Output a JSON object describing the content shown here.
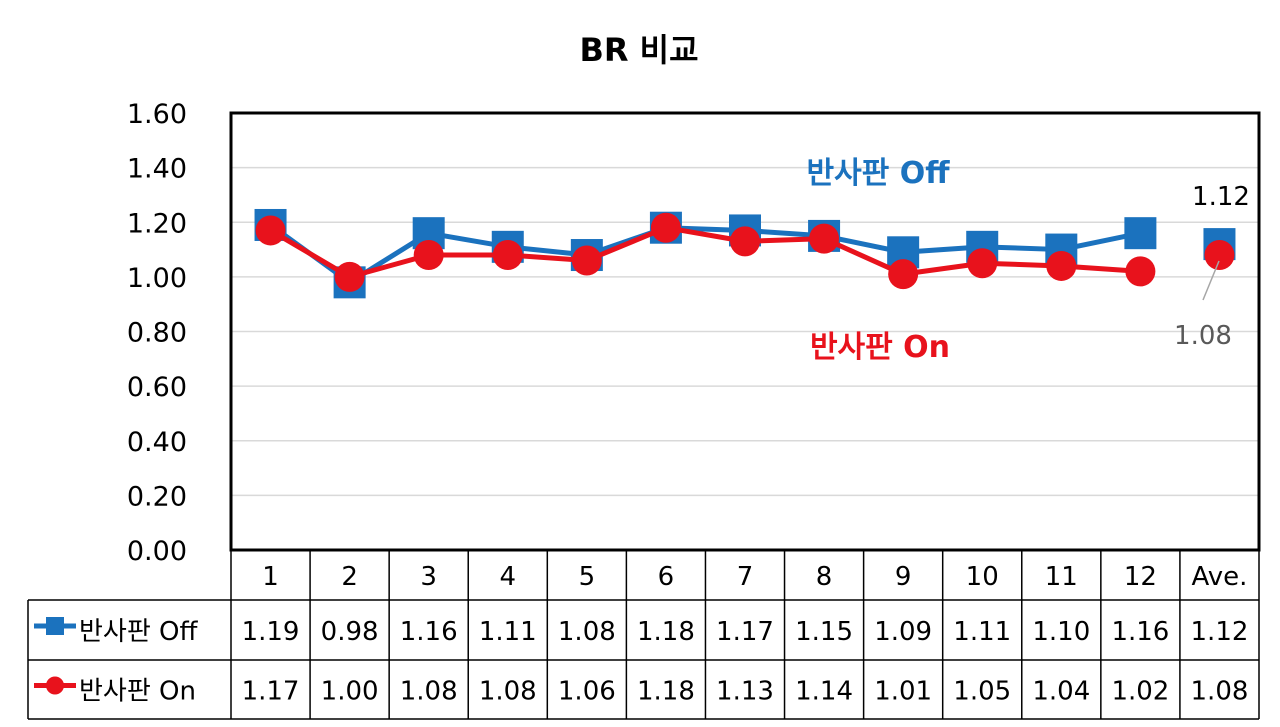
{
  "chart_data": {
    "type": "line",
    "title": "BR 비교",
    "categories": [
      "1",
      "2",
      "3",
      "4",
      "5",
      "6",
      "7",
      "8",
      "9",
      "10",
      "11",
      "12",
      "Ave."
    ],
    "ylim": [
      0,
      1.6
    ],
    "yticks": [
      "0.00",
      "0.20",
      "0.40",
      "0.60",
      "0.80",
      "1.00",
      "1.20",
      "1.40",
      "1.60"
    ],
    "grid": true,
    "legend": "data-table-left",
    "series": [
      {
        "name": "반사판 Off",
        "color": "#1B72BE",
        "marker": "square",
        "values": [
          1.19,
          0.98,
          1.16,
          1.11,
          1.08,
          1.18,
          1.17,
          1.15,
          1.09,
          1.11,
          1.1,
          1.16,
          1.12
        ],
        "table_values": [
          "1.19",
          "0.98",
          "1.16",
          "1.11",
          "1.08",
          "1.18",
          "1.17",
          "1.15",
          "1.09",
          "1.11",
          "1.10",
          "1.16",
          "1.12"
        ]
      },
      {
        "name": "반사판 On",
        "color": "#E8121C",
        "marker": "circle",
        "values": [
          1.17,
          1.0,
          1.08,
          1.08,
          1.06,
          1.18,
          1.13,
          1.14,
          1.01,
          1.05,
          1.04,
          1.02,
          1.08
        ],
        "table_values": [
          "1.17",
          "1.00",
          "1.08",
          "1.08",
          "1.06",
          "1.18",
          "1.13",
          "1.14",
          "1.01",
          "1.05",
          "1.04",
          "1.02",
          "1.08"
        ]
      }
    ],
    "annotations": [
      {
        "text": "반사판 Off",
        "color": "#1B72BE"
      },
      {
        "text": "반사판 On",
        "color": "#E8121C"
      }
    ],
    "data_labels": [
      {
        "text": "1.12",
        "color": "#000000"
      },
      {
        "text": "1.08",
        "color": "#595959"
      }
    ]
  }
}
